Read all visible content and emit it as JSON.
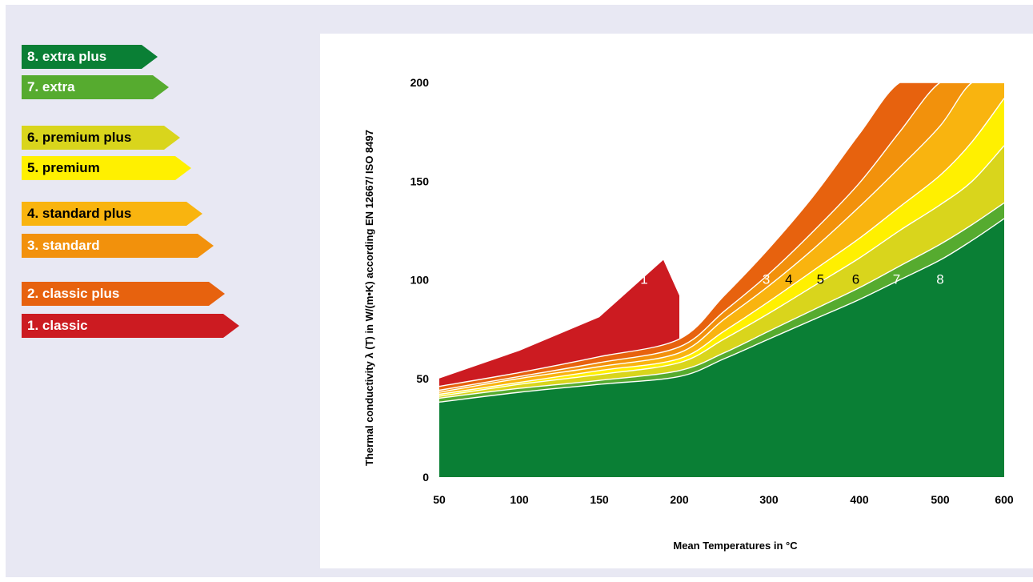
{
  "legend": [
    {
      "label": "8. extra plus",
      "bg": "#0a7f35",
      "fg": "#ffffff"
    },
    {
      "label": "7. extra",
      "bg": "#56ab2f",
      "fg": "#ffffff"
    },
    {
      "label": "6. premium plus",
      "bg": "#d9d51c",
      "fg": "#000000"
    },
    {
      "label": "5. premium",
      "bg": "#fff000",
      "fg": "#000000"
    },
    {
      "label": "4. standard plus",
      "bg": "#f9b40f",
      "fg": "#000000"
    },
    {
      "label": "3. standard",
      "bg": "#f2910c",
      "fg": "#ffffff"
    },
    {
      "label": "2. classic plus",
      "bg": "#e7620e",
      "fg": "#ffffff"
    },
    {
      "label": "1. classic",
      "bg": "#cc1b21",
      "fg": "#ffffff"
    }
  ],
  "chart_data": {
    "type": "area",
    "title": "",
    "xlabel": "Mean Temperatures in °C",
    "ylabel": "Thermal conductivity λ (T) in W/(m•K) according EN 12667/ ISO 8497",
    "xlim": [
      50,
      600
    ],
    "ylim": [
      0,
      200
    ],
    "x_ticks": [
      50,
      100,
      150,
      200,
      300,
      400,
      500,
      600
    ],
    "y_ticks": [
      0,
      50,
      100,
      150,
      200
    ],
    "grid": false,
    "legend_position": "left",
    "x": [
      50,
      100,
      150,
      200,
      250,
      300,
      350,
      400,
      450,
      500,
      550,
      600
    ],
    "series": [
      {
        "name": "8",
        "color": "#0a7f35",
        "label_color": "#ffffff",
        "label_at": [
          500,
          98
        ],
        "values": [
          38,
          43,
          47,
          51,
          60,
          70,
          80,
          90,
          100,
          110,
          120,
          131
        ]
      },
      {
        "name": "7",
        "color": "#56ab2f",
        "label_color": "#ffffff",
        "label_at": [
          446,
          98
        ],
        "values": [
          40,
          45,
          49,
          54,
          63,
          74,
          85,
          96,
          107,
          118,
          128,
          139
        ]
      },
      {
        "name": "6",
        "color": "#d9d51c",
        "label_color": "#000000",
        "label_at": [
          396,
          98
        ],
        "values": [
          41,
          47,
          52,
          58,
          70,
          83,
          97,
          111,
          125,
          138,
          150,
          168
        ]
      },
      {
        "name": "5",
        "color": "#fff000",
        "label_color": "#000000",
        "label_at": [
          357,
          98
        ],
        "values": [
          42,
          48,
          54,
          60,
          74,
          89,
          105,
          121,
          137,
          153,
          170,
          192
        ]
      },
      {
        "name": "4",
        "color": "#f9b40f",
        "label_color": "#000000",
        "label_at": [
          322,
          98
        ],
        "values": [
          43,
          50,
          56,
          63,
          80,
          97,
          116,
          137,
          157,
          178,
          200,
          200
        ]
      },
      {
        "name": "3",
        "color": "#f2910c",
        "label_color": "#ffffff",
        "label_at": [
          297,
          98
        ],
        "values": [
          44,
          51,
          58,
          66,
          84,
          103,
          125,
          149,
          175,
          200,
          200,
          200
        ]
      },
      {
        "name": "2",
        "color": "#e7620e",
        "label_color": "#ffffff",
        "label_at": [
          250,
          98
        ],
        "values": [
          46,
          53,
          61,
          70,
          92,
          116,
          143,
          174,
          200,
          200,
          200,
          200
        ]
      },
      {
        "name": "1",
        "color": "#cc1b21",
        "label_color": "#ffffff",
        "label_at": [
          178,
          98
        ],
        "x": [
          50,
          100,
          150,
          190,
          200
        ],
        "values": [
          50,
          64,
          81,
          110,
          92
        ]
      }
    ]
  }
}
